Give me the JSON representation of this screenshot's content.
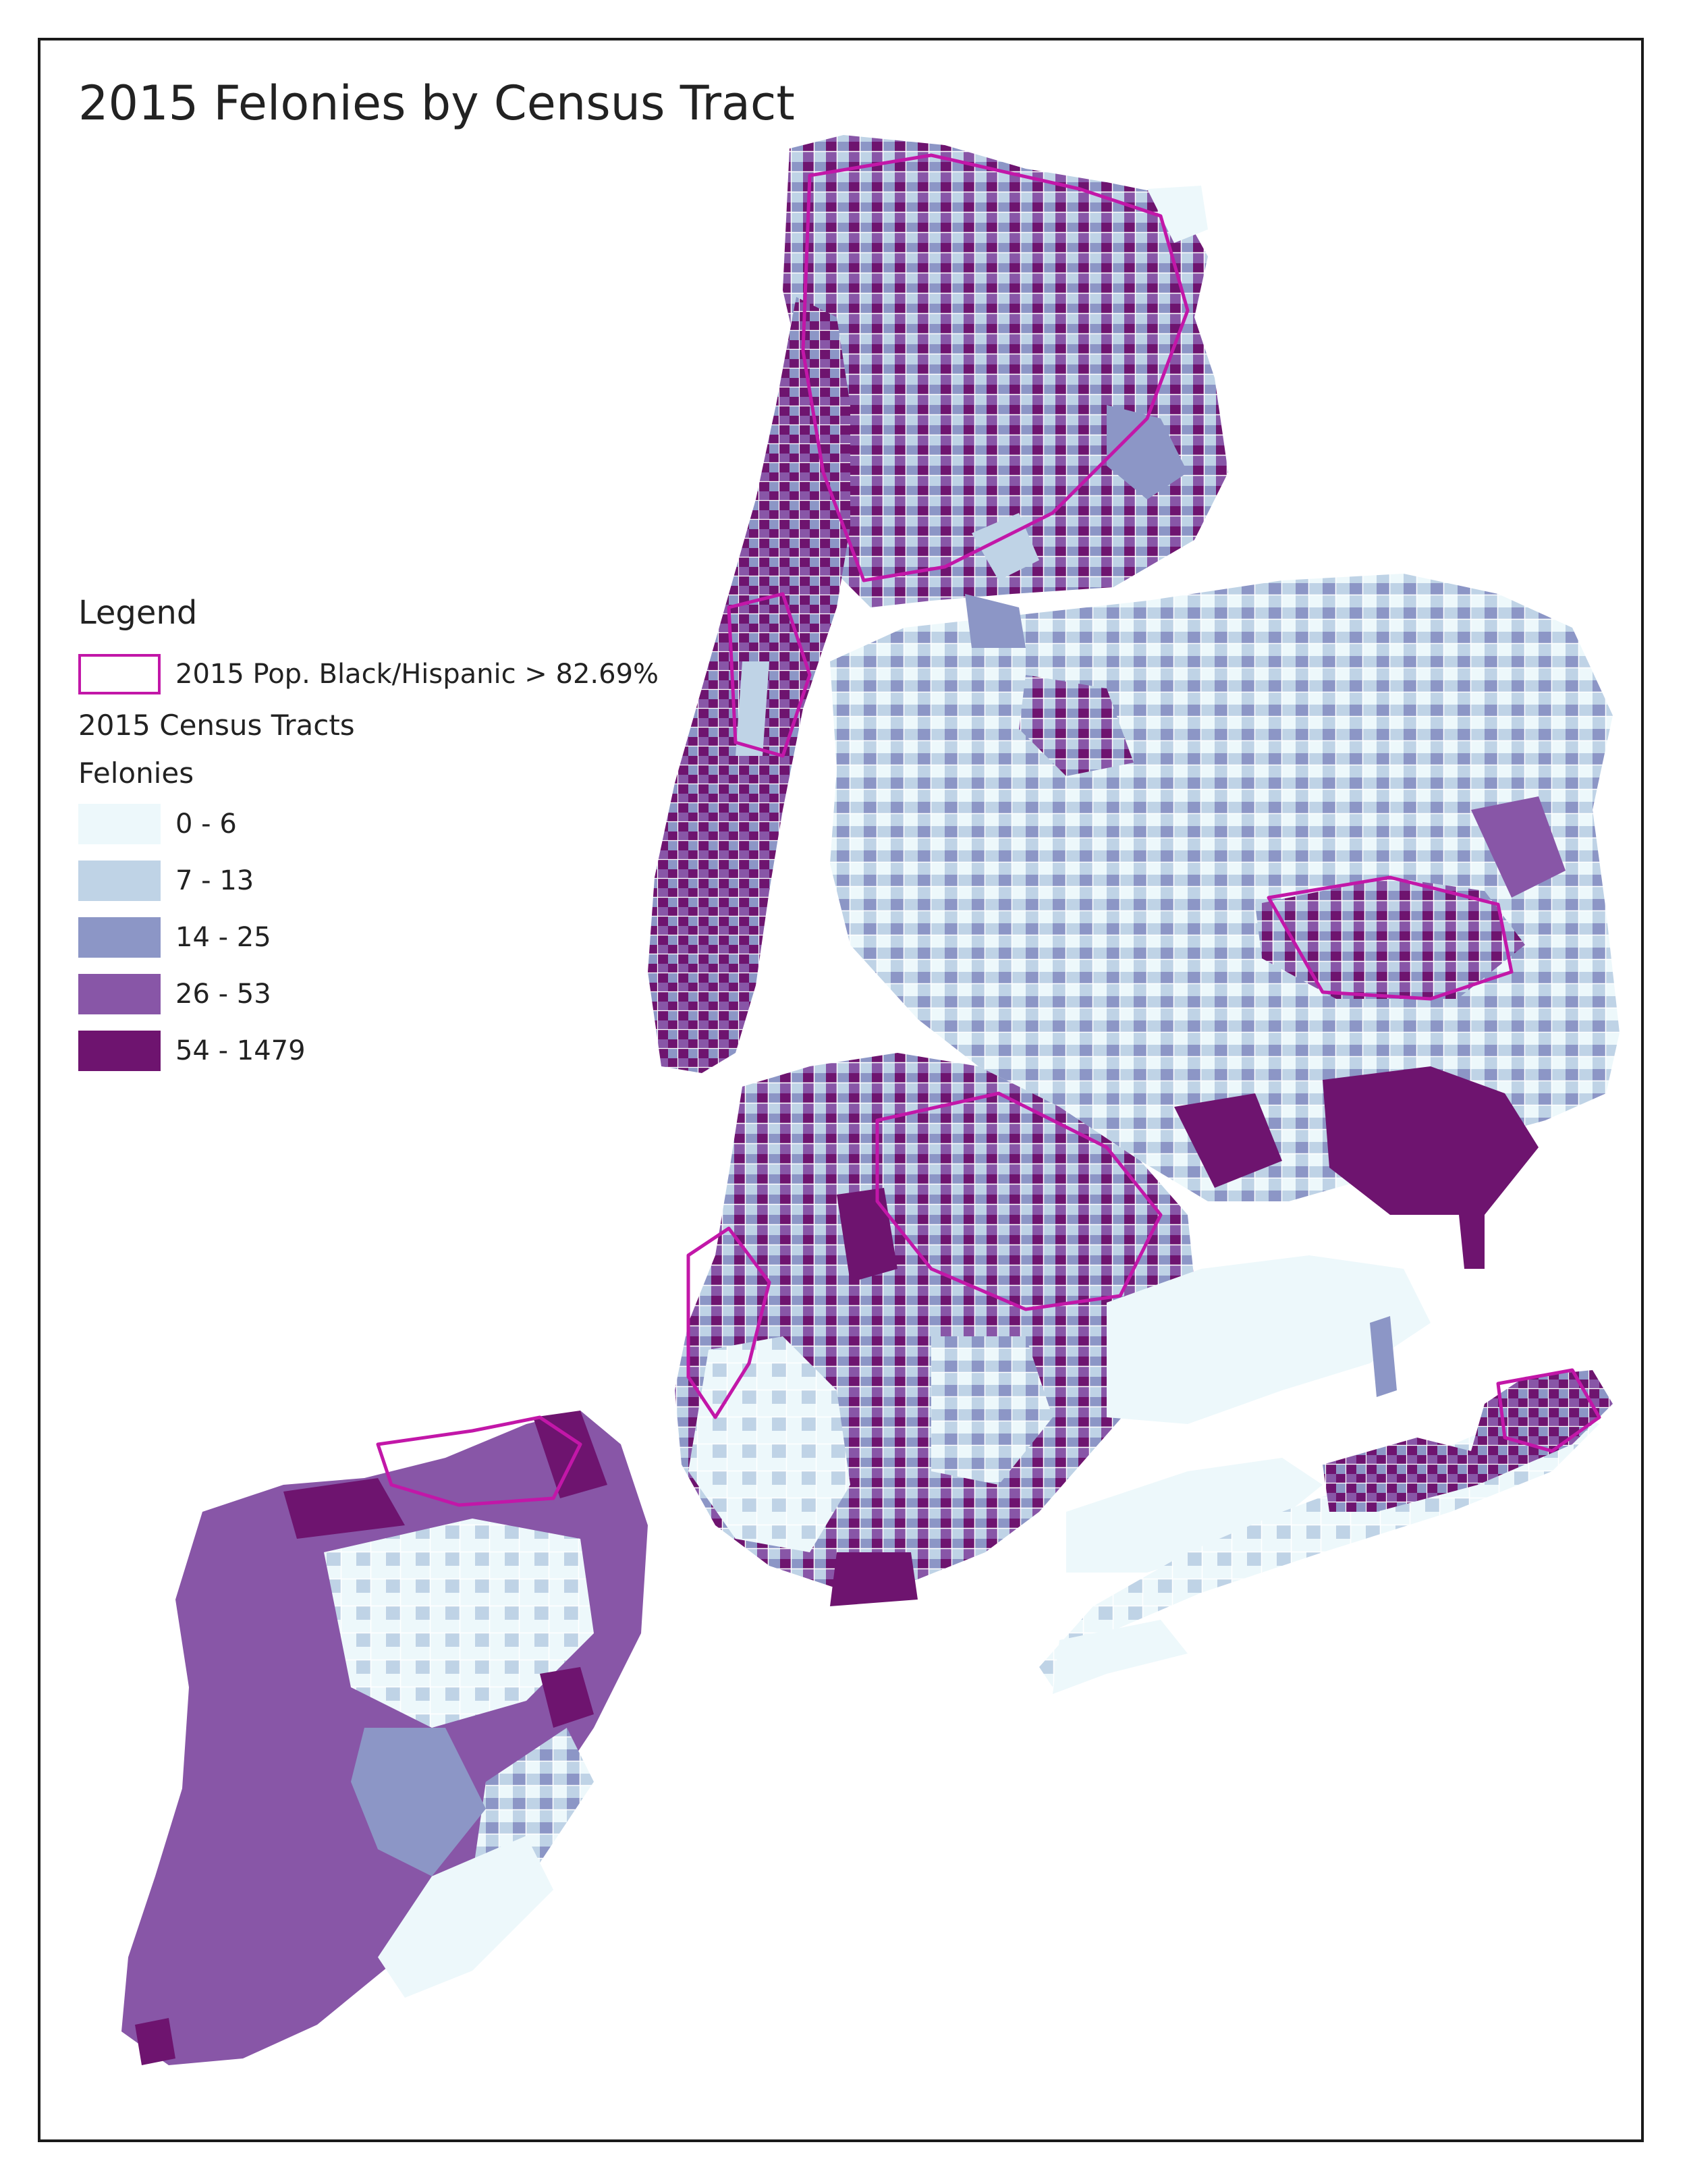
{
  "title": "2015 Felonies by Census Tract",
  "legend": {
    "heading": "Legend",
    "overlay_label": "2015 Pop. Black/Hispanic > 82.69%",
    "overlay_outline_color": "#c217a8",
    "layer_name": "2015 Census Tracts",
    "field_name": "Felonies",
    "classes": [
      {
        "label": "0 - 6",
        "color": "#edf8fb"
      },
      {
        "label": "7 - 13",
        "color": "#bfd3e6"
      },
      {
        "label": "14 - 25",
        "color": "#8c96c6"
      },
      {
        "label": "26 - 53",
        "color": "#8856a7"
      },
      {
        "label": "54 - 1479",
        "color": "#6e146f"
      }
    ]
  }
}
